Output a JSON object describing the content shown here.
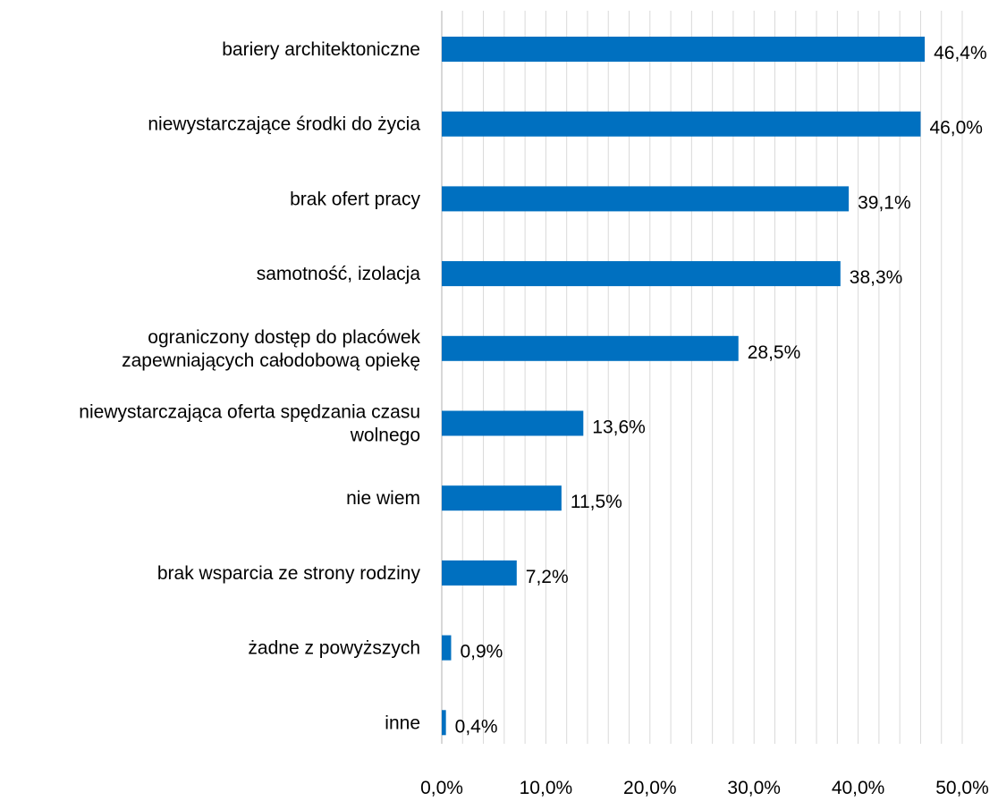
{
  "chart_data": {
    "type": "bar",
    "orientation": "horizontal",
    "title": "",
    "xlabel": "",
    "ylabel": "",
    "categories": [
      [
        "bariery architektoniczne"
      ],
      [
        "niewystarczające środki do życia"
      ],
      [
        "brak ofert pracy"
      ],
      [
        "samotność, izolacja"
      ],
      [
        "ograniczony dostęp do placówek",
        "zapewniających całodobową opiekę"
      ],
      [
        "niewystarczająca oferta spędzania czasu",
        "wolnego"
      ],
      [
        "nie wiem"
      ],
      [
        "brak wsparcia ze strony rodziny"
      ],
      [
        "żadne z powyższych"
      ],
      [
        "inne"
      ]
    ],
    "values": [
      46.4,
      46.0,
      39.1,
      38.3,
      28.5,
      13.6,
      11.5,
      7.2,
      0.9,
      0.4
    ],
    "value_labels": [
      "46,4%",
      "46,0%",
      "39,1%",
      "38,3%",
      "28,5%",
      "13,6%",
      "11,5%",
      "7,2%",
      "0,9%",
      "0,4%"
    ],
    "xlim": [
      0,
      50
    ],
    "x_tick_values": [
      0,
      10,
      20,
      30,
      40,
      50
    ],
    "x_tick_labels": [
      "0,0%",
      "10,0%",
      "20,0%",
      "30,0%",
      "40,0%",
      "50,0%"
    ],
    "minor_gridline_step": 2,
    "grid": true,
    "legend": "none",
    "bar_color": "#0070C0",
    "grid_color": "#D9D9D9"
  }
}
